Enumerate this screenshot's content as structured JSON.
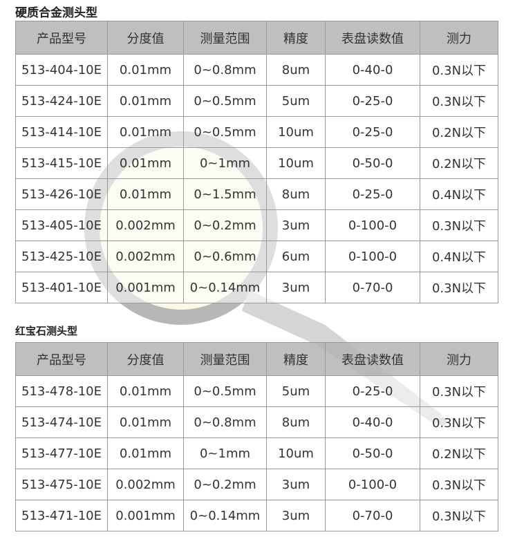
{
  "tables": [
    {
      "title": "硬质合金测头型",
      "headers": [
        "产品型号",
        "分度值",
        "测量范围",
        "精度",
        "表盘读数值",
        "测力"
      ],
      "rows": [
        [
          "513-404-10E",
          "0.01mm",
          "0~0.8mm",
          "8um",
          "0-40-0",
          "0.3N以下"
        ],
        [
          "513-424-10E",
          "0.01mm",
          "0~0.5mm",
          "5um",
          "0-25-0",
          "0.3N以下"
        ],
        [
          "513-414-10E",
          "0.01mm",
          "0~0.5mm",
          "10um",
          "0-25-0",
          "0.2N以下"
        ],
        [
          "513-415-10E",
          "0.01mm",
          "0~1mm",
          "10um",
          "0-50-0",
          "0.2N以下"
        ],
        [
          "513-426-10E",
          "0.01mm",
          "0~1.5mm",
          "8um",
          "0-25-0",
          "0.4N以下"
        ],
        [
          "513-405-10E",
          "0.002mm",
          "0~0.2mm",
          "3um",
          "0-100-0",
          "0.3N以下"
        ],
        [
          "513-425-10E",
          "0.002mm",
          "0~0.6mm",
          "6um",
          "0-100-0",
          "0.4N以下"
        ],
        [
          "513-401-10E",
          "0.001mm",
          "0~0.14mm",
          "3um",
          "0-70-0",
          "0.3N以下"
        ]
      ]
    },
    {
      "title": "红宝石测头型",
      "headers": [
        "产品型号",
        "分度值",
        "测量范围",
        "精度",
        "表盘读数值",
        "测力"
      ],
      "rows": [
        [
          "513-478-10E",
          "0.01mm",
          "0~0.5mm",
          "5um",
          "0-25-0",
          "0.3N以下"
        ],
        [
          "513-474-10E",
          "0.01mm",
          "0~0.8mm",
          "8um",
          "0-40-0",
          "0.3N以下"
        ],
        [
          "513-477-10E",
          "0.01mm",
          "0~1mm",
          "10um",
          "0-50-0",
          "0.2N以下"
        ],
        [
          "513-475-10E",
          "0.002mm",
          "0~0.2mm",
          "3um",
          "0-100-0",
          "0.3N以下"
        ],
        [
          "513-471-10E",
          "0.001mm",
          "0~0.14mm",
          "3um",
          "0-70-0",
          "0.3N以下"
        ]
      ]
    }
  ],
  "colors": {
    "header_bg": "#b4b4b4",
    "border": "#999999",
    "dial": "#f3efb0"
  }
}
